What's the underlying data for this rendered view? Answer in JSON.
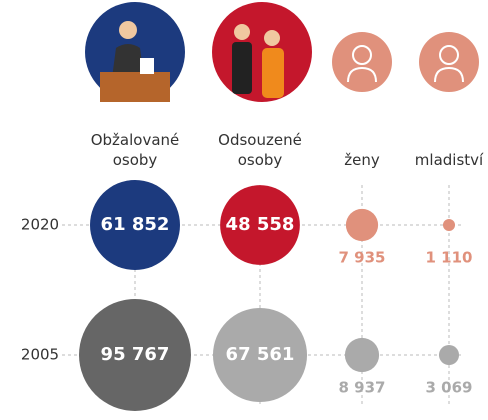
{
  "chart_data": {
    "type": "bubble-grid",
    "categories": [
      "Obžalované osoby",
      "Odsouzené osoby",
      "ženy",
      "mladiství"
    ],
    "series": [
      {
        "name": "2020",
        "colors": [
          "#1c3a7e",
          "#c4172c",
          "#e0917c",
          "#e0917c"
        ],
        "values": [
          61852,
          48558,
          7935,
          1110
        ],
        "value_labels": [
          "61 852",
          "48 558",
          "7 935",
          "1 110"
        ]
      },
      {
        "name": "2005",
        "colors": [
          "#666666",
          "#aaaaaa",
          "#aaaaaa",
          "#aaaaaa"
        ],
        "values": [
          95767,
          67561,
          8937,
          3069
        ],
        "value_labels": [
          "95 767",
          "67 561",
          "8 937",
          "3 069"
        ]
      }
    ]
  }
}
